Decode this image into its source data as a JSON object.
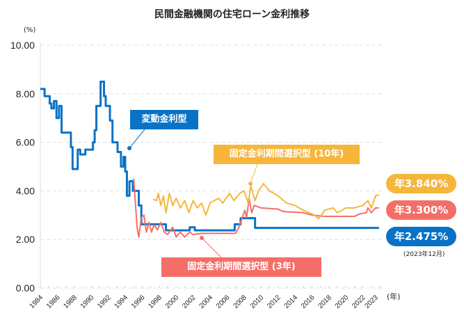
{
  "colors": {
    "variable": "#0a72c6",
    "fixed10": "#f6b63c",
    "fixed3": "#f46e68",
    "grid": "#dddddd"
  },
  "chart_data": {
    "type": "line",
    "title": "民間金融機関の住宅ローン金利推移",
    "ylabel": "(%)",
    "xlabel": "(年)",
    "ylim": [
      0,
      10
    ],
    "xlim": [
      1984,
      2024
    ],
    "yticks": [
      "0.00",
      "2.00",
      "4.00",
      "6.00",
      "8.00",
      "10.00"
    ],
    "xticks": [
      "1984",
      "1986",
      "1988",
      "1990",
      "1992",
      "1994",
      "1996",
      "1998",
      "2000",
      "2002",
      "2004",
      "2006",
      "2008",
      "2010",
      "2012",
      "2014",
      "2016",
      "2018",
      "2020",
      "2022",
      "2023"
    ],
    "grid": true,
    "series": [
      {
        "name": "変動金利型",
        "key": "variable",
        "step": true,
        "points": [
          [
            1984,
            8.2
          ],
          [
            1984.5,
            7.9
          ],
          [
            1985.1,
            7.6
          ],
          [
            1985.3,
            7.4
          ],
          [
            1985.6,
            7.7
          ],
          [
            1985.9,
            7.0
          ],
          [
            1986.2,
            7.5
          ],
          [
            1986.5,
            6.4
          ],
          [
            1987.6,
            5.8
          ],
          [
            1987.8,
            4.9
          ],
          [
            1988.4,
            5.7
          ],
          [
            1988.7,
            5.5
          ],
          [
            1989.3,
            5.7
          ],
          [
            1990.2,
            6.0
          ],
          [
            1990.4,
            6.5
          ],
          [
            1990.6,
            7.5
          ],
          [
            1991.1,
            8.5
          ],
          [
            1991.5,
            7.9
          ],
          [
            1991.7,
            7.5
          ],
          [
            1992.2,
            6.9
          ],
          [
            1992.5,
            6.0
          ],
          [
            1993.1,
            5.6
          ],
          [
            1993.5,
            5.0
          ],
          [
            1993.8,
            5.4
          ],
          [
            1994.0,
            4.8
          ],
          [
            1994.2,
            3.8
          ],
          [
            1994.5,
            4.4
          ],
          [
            1994.9,
            4.0
          ],
          [
            1995.6,
            3.4
          ],
          [
            1995.9,
            2.625
          ],
          [
            1998.8,
            2.375
          ],
          [
            1999.5,
            2.375
          ],
          [
            2001.6,
            2.5
          ],
          [
            2002.2,
            2.375
          ],
          [
            2006.9,
            2.625
          ],
          [
            2007.6,
            2.875
          ],
          [
            2009.3,
            2.475
          ],
          [
            2023.9,
            2.475
          ]
        ]
      },
      {
        "name": "固定金利期間選択型 (3年)",
        "key": "fixed3",
        "step": false,
        "points": [
          [
            1995.0,
            4.5
          ],
          [
            1995.1,
            4.0
          ],
          [
            1995.4,
            2.5
          ],
          [
            1995.6,
            2.1
          ],
          [
            1995.9,
            2.9
          ],
          [
            1996.2,
            3.0
          ],
          [
            1996.5,
            2.3
          ],
          [
            1996.8,
            2.7
          ],
          [
            1997.1,
            2.3
          ],
          [
            1997.4,
            2.6
          ],
          [
            1997.8,
            2.4
          ],
          [
            1998.2,
            2.7
          ],
          [
            1998.6,
            2.3
          ],
          [
            1999.0,
            2.2
          ],
          [
            1999.6,
            2.5
          ],
          [
            2000.0,
            2.1
          ],
          [
            2000.5,
            2.3
          ],
          [
            2001.0,
            2.1
          ],
          [
            2001.6,
            2.3
          ],
          [
            2002.0,
            2.2
          ],
          [
            2003.0,
            2.25
          ],
          [
            2007.0,
            2.25
          ],
          [
            2007.4,
            2.5
          ],
          [
            2007.8,
            2.9
          ],
          [
            2008.1,
            3.2
          ],
          [
            2008.3,
            2.9
          ],
          [
            2008.6,
            3.7
          ],
          [
            2008.9,
            3.1
          ],
          [
            2009.2,
            3.4
          ],
          [
            2010.0,
            3.3
          ],
          [
            2012.0,
            3.25
          ],
          [
            2012.6,
            3.15
          ],
          [
            2015.0,
            3.1
          ],
          [
            2016.0,
            3.0
          ],
          [
            2017.5,
            2.95
          ],
          [
            2021.0,
            2.95
          ],
          [
            2021.6,
            3.05
          ],
          [
            2022.4,
            3.1
          ],
          [
            2022.6,
            3.3
          ],
          [
            2023.0,
            3.1
          ],
          [
            2023.5,
            3.3
          ],
          [
            2023.9,
            3.3
          ]
        ]
      },
      {
        "name": "固定金利期間選択型 (10年)",
        "key": "fixed10",
        "step": false,
        "points": [
          [
            1997.3,
            3.65
          ],
          [
            1997.7,
            3.6
          ],
          [
            1997.9,
            3.9
          ],
          [
            1998.2,
            3.4
          ],
          [
            1998.5,
            3.8
          ],
          [
            1998.8,
            3.1
          ],
          [
            1999.2,
            3.9
          ],
          [
            1999.6,
            3.4
          ],
          [
            2000.0,
            3.7
          ],
          [
            2000.5,
            3.3
          ],
          [
            2001.0,
            3.6
          ],
          [
            2001.5,
            3.1
          ],
          [
            2002.0,
            3.6
          ],
          [
            2002.5,
            3.3
          ],
          [
            2003.0,
            3.5
          ],
          [
            2003.5,
            3.0
          ],
          [
            2004.0,
            3.5
          ],
          [
            2005.0,
            3.7
          ],
          [
            2005.5,
            3.5
          ],
          [
            2006.3,
            3.9
          ],
          [
            2006.8,
            3.6
          ],
          [
            2007.5,
            3.9
          ],
          [
            2008.0,
            4.0
          ],
          [
            2008.5,
            3.5
          ],
          [
            2008.8,
            4.2
          ],
          [
            2009.3,
            3.6
          ],
          [
            2009.7,
            4.0
          ],
          [
            2010.3,
            4.3
          ],
          [
            2011.0,
            4.0
          ],
          [
            2012.0,
            3.8
          ],
          [
            2013.0,
            3.5
          ],
          [
            2014.0,
            3.4
          ],
          [
            2015.0,
            3.2
          ],
          [
            2016.3,
            3.0
          ],
          [
            2016.8,
            2.85
          ],
          [
            2017.5,
            3.2
          ],
          [
            2018.5,
            3.3
          ],
          [
            2019.0,
            3.1
          ],
          [
            2020.0,
            3.3
          ],
          [
            2021.0,
            3.3
          ],
          [
            2022.0,
            3.4
          ],
          [
            2022.6,
            3.6
          ],
          [
            2023.0,
            3.3
          ],
          [
            2023.5,
            3.8
          ],
          [
            2023.9,
            3.84
          ]
        ]
      }
    ],
    "annotations": {
      "variable": "変動金利型",
      "fixed10": "固定金利期間選択型 (10年)",
      "fixed3": "固定金利期間選択型 (3年)"
    },
    "end_labels": {
      "fixed10": "年3.840%",
      "fixed3": "年3.300%",
      "variable": "年2.475%",
      "date": "(2023年12月)"
    }
  }
}
